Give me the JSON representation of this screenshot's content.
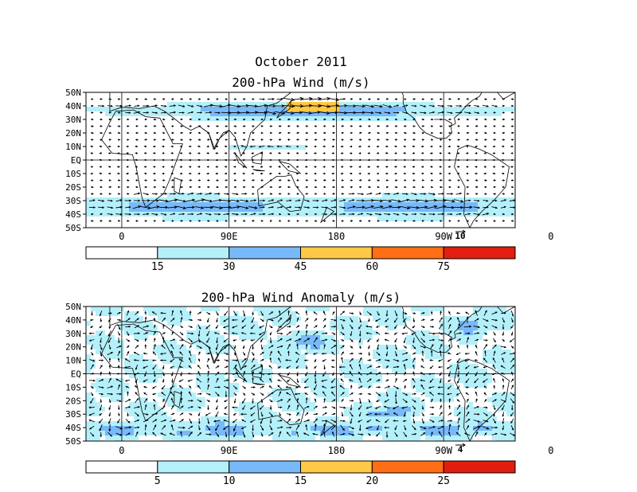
{
  "title": {
    "line1": "October 2011",
    "panel1": "200-hPa Wind (m/s)",
    "panel2": "200-hPa Wind Anomaly (m/s)"
  },
  "colors": {
    "land_water_bg": "#ffffff",
    "c1": "#b4f0fa",
    "c2": "#78b9fa",
    "c3": "#ffc846",
    "c4": "#ff6e14",
    "c5": "#e11e0f"
  },
  "chart_data": [
    {
      "type": "heatmap",
      "title": "200-hPa Wind (m/s)",
      "lat_labels": [
        "50N",
        "40N",
        "30N",
        "20N",
        "10N",
        "EQ",
        "10S",
        "20S",
        "30S",
        "40S",
        "50S"
      ],
      "lon_labels": [
        "0",
        "90E",
        "180",
        "90W",
        "0"
      ],
      "colorbar_labels": [
        "15",
        "30",
        "45",
        "60",
        "75"
      ],
      "colorbar_bins": [
        0,
        15,
        30,
        45,
        60,
        75,
        90
      ],
      "reference_vector": "10",
      "vector_field": "wind arrows"
    },
    {
      "type": "heatmap",
      "title": "200-hPa Wind Anomaly (m/s)",
      "lat_labels": [
        "50N",
        "40N",
        "30N",
        "20N",
        "10N",
        "EQ",
        "10S",
        "20S",
        "30S",
        "40S",
        "50S"
      ],
      "lon_labels": [
        "0",
        "90E",
        "180",
        "90W",
        "0"
      ],
      "colorbar_labels": [
        "5",
        "10",
        "15",
        "20",
        "25"
      ],
      "colorbar_bins": [
        0,
        5,
        10,
        15,
        20,
        25,
        30
      ],
      "reference_vector": "4",
      "vector_field": "wind anomaly arrows"
    }
  ]
}
